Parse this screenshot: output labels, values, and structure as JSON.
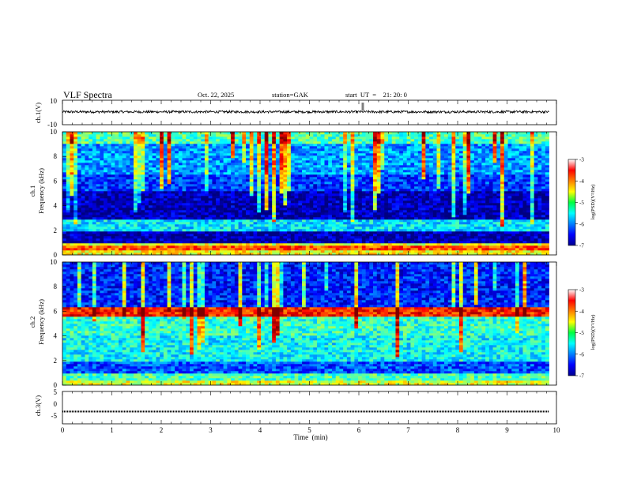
{
  "header": {
    "title": "VLF Spectra",
    "date": "Oct. 22, 2025",
    "station": "station=GAK",
    "start": "start  UT  =    21: 20: 0"
  },
  "chart_data": [
    {
      "type": "line",
      "ylabel": "ch.1(V)",
      "ylim": [
        -10,
        10
      ],
      "yticks": [
        "10",
        "-10"
      ],
      "baseline": 0.5,
      "noise_amplitude": 2,
      "spike_at_min": 6.08
    },
    {
      "type": "heatmap",
      "ylabel": "ch.1\nFrequency  (kHz)",
      "ylim": [
        0,
        10
      ],
      "yticks": [
        "0",
        "2",
        "4",
        "6",
        "8",
        "10"
      ],
      "colorbar": {
        "label": "log(PSD)(V²/Hz)",
        "range": [
          -7,
          -3
        ],
        "ticks": [
          "-3",
          "-4",
          "-5",
          "-6",
          "-7"
        ]
      },
      "bands": [
        {
          "f0": 0.0,
          "f1": 0.3,
          "level": -4.5
        },
        {
          "f0": 0.3,
          "f1": 0.7,
          "level": -3.8
        },
        {
          "f0": 0.7,
          "f1": 1.0,
          "level": -4.6
        },
        {
          "f0": 1.0,
          "f1": 2.0,
          "level": -6.8
        },
        {
          "f0": 2.0,
          "f1": 2.8,
          "level": -5.6
        },
        {
          "f0": 2.8,
          "f1": 5.2,
          "level": -6.8
        },
        {
          "f0": 5.2,
          "f1": 6.6,
          "level": -6.3
        },
        {
          "f0": 6.6,
          "f1": 9.0,
          "level": -5.9
        },
        {
          "f0": 9.0,
          "f1": 10.0,
          "level": -5.2
        }
      ]
    },
    {
      "type": "heatmap",
      "ylabel": "ch.2\nFrequency  (kHz)",
      "ylim": [
        0,
        10
      ],
      "yticks": [
        "0",
        "2",
        "4",
        "6",
        "8",
        "10"
      ],
      "colorbar": {
        "label": "log(PSD)(V²/Hz)",
        "range": [
          -7,
          -3
        ],
        "ticks": [
          "-3",
          "-4",
          "-5",
          "-6",
          "-7"
        ]
      },
      "bands": [
        {
          "f0": 0.0,
          "f1": 0.3,
          "level": -4.6
        },
        {
          "f0": 0.3,
          "f1": 1.0,
          "level": -5.2
        },
        {
          "f0": 1.0,
          "f1": 2.0,
          "level": -6.2
        },
        {
          "f0": 2.0,
          "f1": 4.0,
          "level": -5.5
        },
        {
          "f0": 4.0,
          "f1": 5.6,
          "level": -5.3
        },
        {
          "f0": 5.6,
          "f1": 6.4,
          "level": -3.6
        },
        {
          "f0": 6.4,
          "f1": 10.0,
          "level": -6.4
        }
      ]
    },
    {
      "type": "line",
      "ylabel": "ch.3(V)",
      "ylim": [
        -5,
        5
      ],
      "yticks": [
        "5",
        "0",
        "-5"
      ],
      "baseline": -1.2
    }
  ],
  "xaxis": {
    "label": "Time  (min)",
    "range": [
      0,
      10
    ],
    "ticks": [
      "0",
      "1",
      "2",
      "3",
      "4",
      "5",
      "6",
      "7",
      "8",
      "9",
      "10"
    ],
    "data_end": 9.85
  }
}
